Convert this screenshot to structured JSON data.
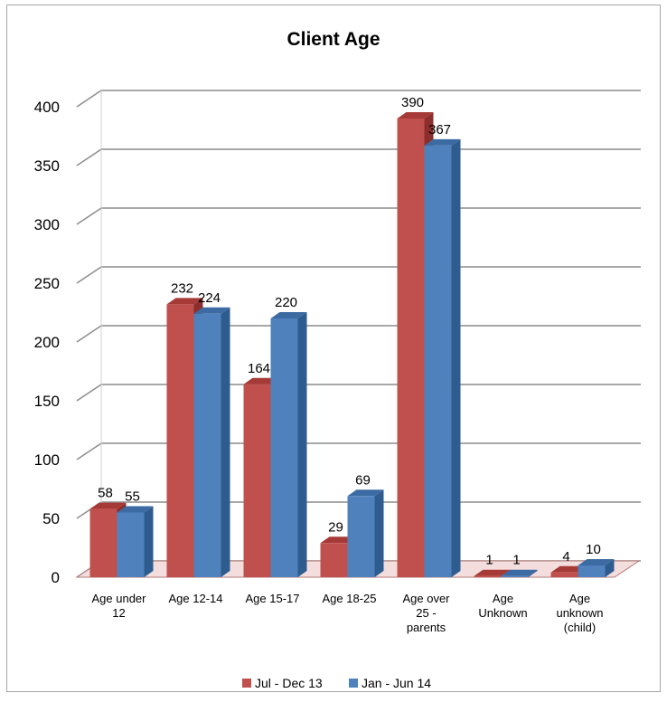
{
  "chart_data": {
    "type": "bar",
    "title": "Client Age",
    "xlabel": "",
    "ylabel": "",
    "ylim": [
      0,
      400
    ],
    "yticks": [
      0,
      50,
      100,
      150,
      200,
      250,
      300,
      350,
      400
    ],
    "categories": [
      [
        "Age under",
        "12"
      ],
      [
        "Age 12-14"
      ],
      [
        "Age 15-17"
      ],
      [
        "Age 18-25"
      ],
      [
        "Age over",
        "25 -",
        "parents"
      ],
      [
        "Age",
        "Unknown"
      ],
      [
        "Age",
        "unknown",
        "(child)"
      ]
    ],
    "series": [
      {
        "name": "Jul - Dec 13",
        "values": [
          58,
          232,
          164,
          29,
          390,
          1,
          4
        ],
        "color": "#c0504d",
        "side": "#8c2f2c",
        "top": "#a63a37"
      },
      {
        "name": "Jan - Jun 14",
        "values": [
          55,
          224,
          220,
          69,
          367,
          1,
          10
        ],
        "color": "#4f81bd",
        "side": "#2e5c8f",
        "top": "#3c6ba4"
      }
    ],
    "grid": true,
    "legend_position": "bottom"
  }
}
